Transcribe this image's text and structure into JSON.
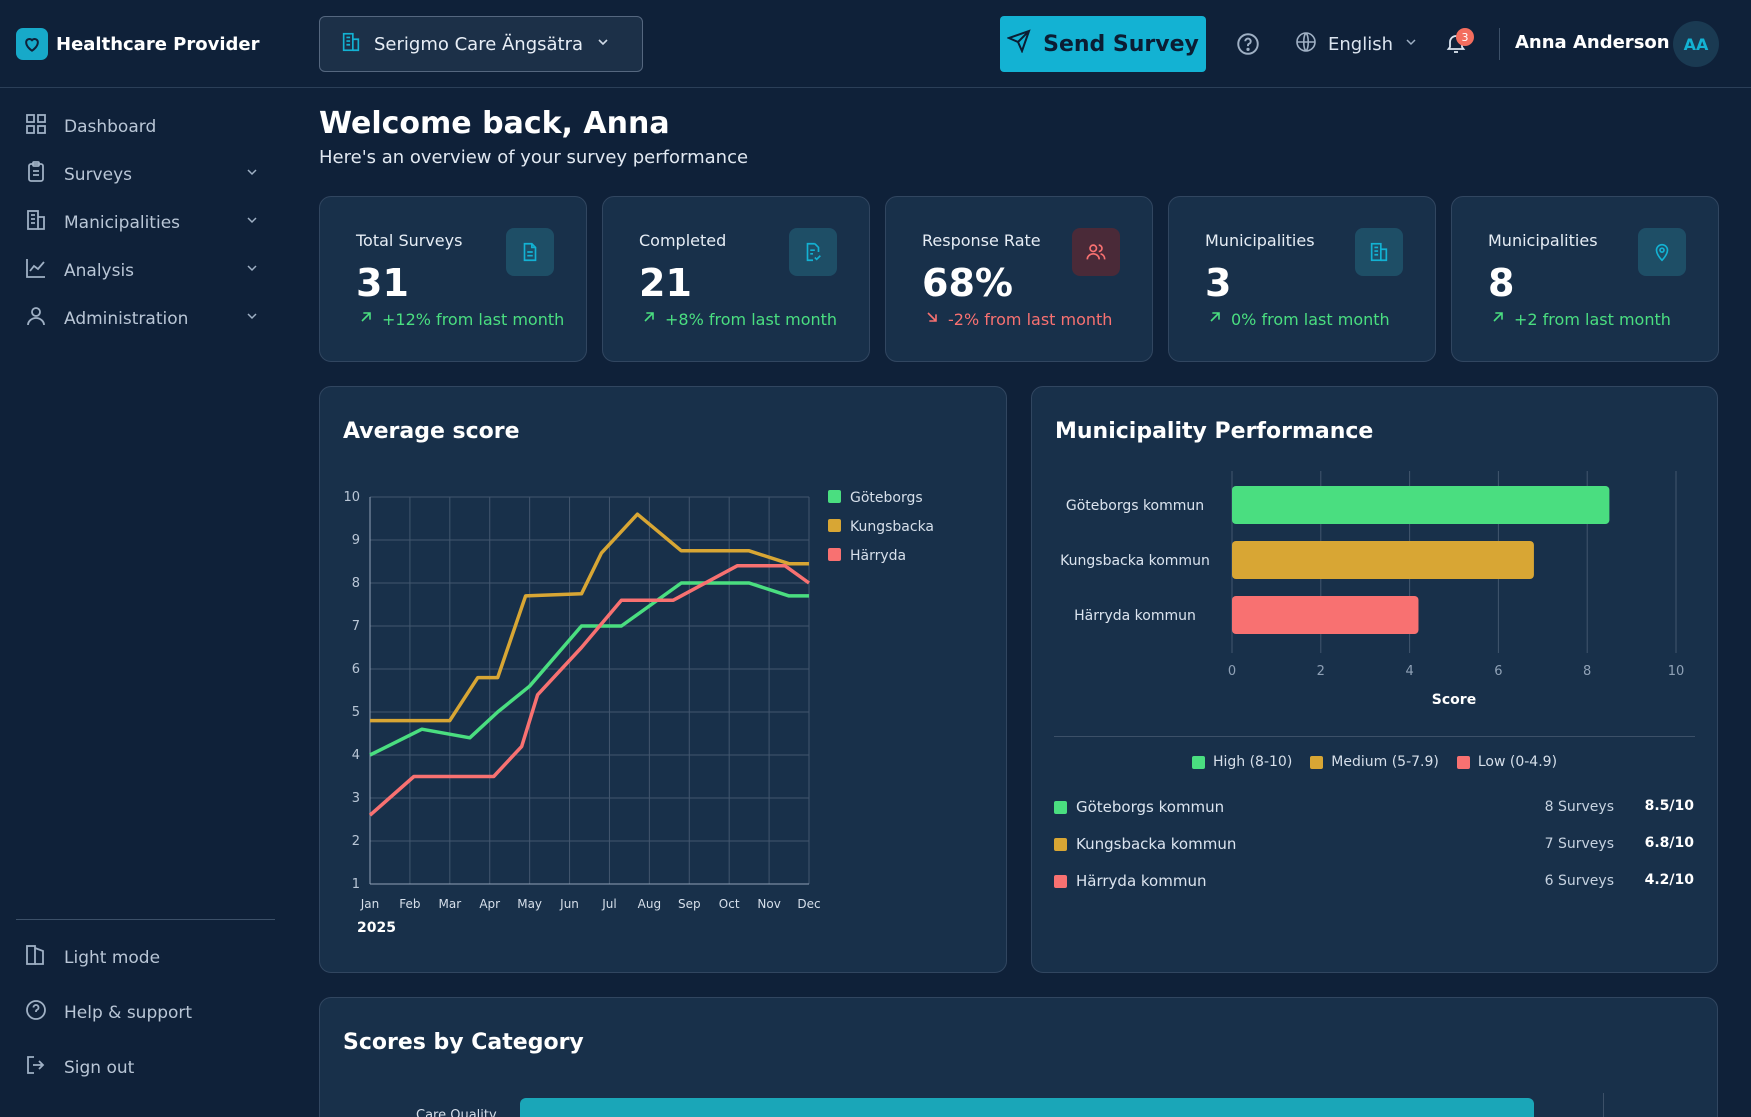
{
  "brand": {
    "name": "Healthcare Provider"
  },
  "org_select": {
    "value": "Serigmo Care Ängsätra"
  },
  "header": {
    "send_label": "Send Survey",
    "language": "English",
    "notifications": "3",
    "user_name": "Anna Anderson",
    "user_initials": "AA"
  },
  "sidebar": {
    "items": [
      {
        "label": "Dashboard",
        "icon": "grid-icon"
      },
      {
        "label": "Surveys",
        "icon": "clipboard-icon"
      },
      {
        "label": "Manicipalities",
        "icon": "building-icon"
      },
      {
        "label": "Analysis",
        "icon": "chart-line-icon"
      },
      {
        "label": "Administration",
        "icon": "user-icon"
      }
    ],
    "bottom": [
      {
        "label": "Light mode",
        "icon": "light-mode-icon"
      },
      {
        "label": "Help & support",
        "icon": "help-icon"
      },
      {
        "label": "Sign out",
        "icon": "sign-out-icon"
      }
    ]
  },
  "welcome": {
    "title": "Welcome back, Anna",
    "subtitle": "Here's an overview of your survey performance"
  },
  "stats": [
    {
      "title": "Total Surveys",
      "value": "31",
      "change": "+12% from last month",
      "trend": "up",
      "icon": "document-icon"
    },
    {
      "title": "Completed",
      "value": "21",
      "change": "+8% from last month",
      "trend": "up",
      "icon": "document-check-icon"
    },
    {
      "title": "Response Rate",
      "value": "68%",
      "change": "-2% from last month",
      "trend": "down",
      "icon": "users-icon"
    },
    {
      "title": "Municipalities",
      "value": "3",
      "change": "0% from last month",
      "trend": "up",
      "icon": "building-icon"
    },
    {
      "title": "Municipalities",
      "value": "8",
      "change": "+2 from last month",
      "trend": "up",
      "icon": "location-pin-icon"
    }
  ],
  "colors": {
    "accent": "#13b2d3",
    "green": "#4ade80",
    "gold": "#d8a634",
    "red": "#f87171",
    "up": "#4ade80",
    "down": "#f87171"
  },
  "chart_data": [
    {
      "type": "line",
      "title": "Average score",
      "x": [
        "Jan",
        "Feb",
        "Mar",
        "Apr",
        "May",
        "Jun",
        "Jul",
        "Aug",
        "Sep",
        "Oct",
        "Nov",
        "Dec"
      ],
      "xlabel": "2025",
      "ylim": [
        1,
        10
      ],
      "yticks": [
        1,
        2,
        3,
        4,
        5,
        6,
        7,
        8,
        9,
        10
      ],
      "grid": true,
      "legend": "right",
      "series": [
        {
          "name": "Göteborgs",
          "color": "#4ade80",
          "points": [
            [
              0,
              4
            ],
            [
              1.3,
              4.6
            ],
            [
              2.5,
              4.4
            ],
            [
              3.2,
              5.0
            ],
            [
              4,
              5.6
            ],
            [
              5.3,
              7.0
            ],
            [
              6.3,
              7.0
            ],
            [
              7.8,
              8.0
            ],
            [
              9.5,
              8.0
            ],
            [
              10.5,
              7.7
            ],
            [
              11,
              7.7
            ]
          ]
        },
        {
          "name": "Kungsbacka",
          "color": "#d8a634",
          "points": [
            [
              0,
              4.8
            ],
            [
              2,
              4.8
            ],
            [
              2.7,
              5.8
            ],
            [
              3.2,
              5.8
            ],
            [
              3.9,
              7.7
            ],
            [
              5.3,
              7.75
            ],
            [
              5.8,
              8.7
            ],
            [
              6.7,
              9.6
            ],
            [
              7.8,
              8.75
            ],
            [
              9.5,
              8.75
            ],
            [
              10.5,
              8.45
            ],
            [
              11,
              8.45
            ]
          ]
        },
        {
          "name": "Härryda",
          "color": "#f87171",
          "points": [
            [
              0,
              2.6
            ],
            [
              1.1,
              3.5
            ],
            [
              3.1,
              3.5
            ],
            [
              3.8,
              4.2
            ],
            [
              4.2,
              5.4
            ],
            [
              5.3,
              6.5
            ],
            [
              6.3,
              7.6
            ],
            [
              7.6,
              7.6
            ],
            [
              9.2,
              8.4
            ],
            [
              10.4,
              8.4
            ],
            [
              11,
              8.0
            ]
          ]
        }
      ]
    },
    {
      "type": "bar",
      "orientation": "horizontal",
      "title": "Municipality Performance",
      "categories": [
        "Göteborgs kommun",
        "Kungsbacka kommun",
        "Härryda kommun"
      ],
      "values": [
        8.5,
        6.8,
        4.2
      ],
      "colors": [
        "#4ade80",
        "#d8a634",
        "#f87171"
      ],
      "xlabel": "Score",
      "xlim": [
        0,
        10
      ],
      "xticks": [
        0,
        2,
        4,
        6,
        8,
        10
      ],
      "legend": [
        {
          "label": "High (8-10)",
          "color": "#4ade80"
        },
        {
          "label": "Medium (5-7.9)",
          "color": "#d8a634"
        },
        {
          "label": "Low (0-4.9)",
          "color": "#f87171"
        }
      ]
    }
  ],
  "muni_summary": [
    {
      "name": "Göteborgs kommun",
      "count": "8 Surveys",
      "score": "8.5/10",
      "color": "#4ade80"
    },
    {
      "name": "Kungsbacka kommun",
      "count": "7 Surveys",
      "score": "6.8/10",
      "color": "#d8a634"
    },
    {
      "name": "Härryda kommun",
      "count": "6 Surveys",
      "score": "4.2/10",
      "color": "#f87171"
    }
  ],
  "categories_panel": {
    "title": "Scores by Category",
    "first_label": "Care Quality"
  }
}
